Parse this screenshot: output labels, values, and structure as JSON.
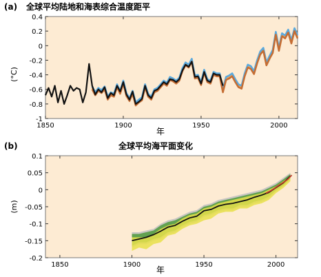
{
  "chart_data": [
    {
      "type": "line",
      "panel": "(a)",
      "title": "全球平均陆地和海表综合温度距平",
      "xlabel": "年",
      "ylabel": "(°C)",
      "xlim": [
        1850,
        2012
      ],
      "ylim": [
        -1,
        0.4
      ],
      "xticks": [
        "1850",
        "1900",
        "1950",
        "2000"
      ],
      "yticks": [
        "0.4",
        "0.2",
        "0",
        "-0.2",
        "-0.4",
        "-0.6",
        "-0.8",
        "-1"
      ],
      "background": "#fdebd3",
      "series": [
        {
          "color": "#f2a65a",
          "x": [
            1880,
            1882,
            1884,
            1886,
            1888,
            1890,
            1892,
            1894,
            1896,
            1898,
            1900,
            1902,
            1904,
            1906,
            1908,
            1910,
            1912,
            1914,
            1916,
            1918,
            1920,
            1922,
            1924,
            1926,
            1928,
            1930,
            1932,
            1934,
            1936,
            1938,
            1940,
            1942,
            1944,
            1946,
            1948,
            1950,
            1952,
            1954,
            1956,
            1958,
            1960,
            1962,
            1964,
            1966,
            1968,
            1970,
            1972,
            1974,
            1976,
            1978,
            1980,
            1982,
            1984,
            1986,
            1988,
            1990,
            1992,
            1994,
            1996,
            1998,
            2000,
            2002,
            2004,
            2006,
            2008,
            2010,
            2012
          ],
          "y": [
            -0.58,
            -0.66,
            -0.6,
            -0.63,
            -0.58,
            -0.72,
            -0.66,
            -0.68,
            -0.55,
            -0.64,
            -0.5,
            -0.67,
            -0.74,
            -0.64,
            -0.8,
            -0.76,
            -0.73,
            -0.55,
            -0.68,
            -0.72,
            -0.62,
            -0.6,
            -0.55,
            -0.5,
            -0.53,
            -0.45,
            -0.47,
            -0.5,
            -0.46,
            -0.33,
            -0.25,
            -0.28,
            -0.2,
            -0.43,
            -0.42,
            -0.52,
            -0.35,
            -0.48,
            -0.5,
            -0.38,
            -0.4,
            -0.4,
            -0.62,
            -0.45,
            -0.43,
            -0.4,
            -0.48,
            -0.55,
            -0.57,
            -0.4,
            -0.28,
            -0.3,
            -0.37,
            -0.22,
            -0.1,
            -0.05,
            -0.25,
            -0.16,
            -0.08,
            0.17,
            -0.05,
            0.15,
            0.12,
            0.2,
            0.05,
            0.22,
            0.12
          ]
        },
        {
          "color": "#5aa9dd",
          "x": [
            1880,
            1882,
            1884,
            1886,
            1888,
            1890,
            1892,
            1894,
            1896,
            1898,
            1900,
            1902,
            1904,
            1906,
            1908,
            1910,
            1912,
            1914,
            1916,
            1918,
            1920,
            1922,
            1924,
            1926,
            1928,
            1930,
            1932,
            1934,
            1936,
            1938,
            1940,
            1942,
            1944,
            1946,
            1948,
            1950,
            1952,
            1954,
            1956,
            1958,
            1960,
            1962,
            1964,
            1966,
            1968,
            1970,
            1972,
            1974,
            1976,
            1978,
            1980,
            1982,
            1984,
            1986,
            1988,
            1990,
            1992,
            1994,
            1996,
            1998,
            2000,
            2002,
            2004,
            2006,
            2008,
            2010,
            2012
          ],
          "y": [
            -0.56,
            -0.64,
            -0.58,
            -0.61,
            -0.56,
            -0.7,
            -0.64,
            -0.66,
            -0.53,
            -0.62,
            -0.48,
            -0.65,
            -0.72,
            -0.62,
            -0.78,
            -0.74,
            -0.71,
            -0.53,
            -0.66,
            -0.7,
            -0.6,
            -0.58,
            -0.53,
            -0.48,
            -0.51,
            -0.43,
            -0.45,
            -0.48,
            -0.44,
            -0.31,
            -0.23,
            -0.26,
            -0.18,
            -0.41,
            -0.4,
            -0.5,
            -0.33,
            -0.46,
            -0.48,
            -0.36,
            -0.38,
            -0.38,
            -0.6,
            -0.43,
            -0.41,
            -0.38,
            -0.46,
            -0.53,
            -0.55,
            -0.38,
            -0.26,
            -0.28,
            -0.35,
            -0.2,
            -0.08,
            -0.03,
            -0.23,
            -0.14,
            -0.06,
            0.19,
            -0.03,
            0.17,
            0.14,
            0.22,
            0.07,
            0.24,
            0.14
          ]
        },
        {
          "color": "#c56d33",
          "x": [
            1880,
            1882,
            1884,
            1886,
            1888,
            1890,
            1892,
            1894,
            1896,
            1898,
            1900,
            1902,
            1904,
            1906,
            1908,
            1910,
            1912,
            1914,
            1916,
            1918,
            1920,
            1922,
            1924,
            1926,
            1928,
            1930,
            1932,
            1934,
            1936,
            1938,
            1940,
            1942,
            1944,
            1946,
            1948,
            1950,
            1952,
            1954,
            1956,
            1958,
            1960,
            1962,
            1964,
            1966,
            1968,
            1970,
            1972,
            1974,
            1976,
            1978,
            1980,
            1982,
            1984,
            1986,
            1988,
            1990,
            1992,
            1994,
            1996,
            1998,
            2000,
            2002,
            2004,
            2006,
            2008,
            2010,
            2012
          ],
          "y": [
            -0.6,
            -0.68,
            -0.62,
            -0.65,
            -0.6,
            -0.74,
            -0.68,
            -0.7,
            -0.57,
            -0.66,
            -0.52,
            -0.69,
            -0.76,
            -0.66,
            -0.82,
            -0.78,
            -0.75,
            -0.57,
            -0.7,
            -0.74,
            -0.64,
            -0.62,
            -0.57,
            -0.52,
            -0.55,
            -0.47,
            -0.49,
            -0.52,
            -0.48,
            -0.35,
            -0.27,
            -0.3,
            -0.22,
            -0.45,
            -0.44,
            -0.54,
            -0.37,
            -0.5,
            -0.52,
            -0.4,
            -0.42,
            -0.42,
            -0.64,
            -0.47,
            -0.45,
            -0.42,
            -0.5,
            -0.57,
            -0.59,
            -0.42,
            -0.3,
            -0.32,
            -0.39,
            -0.24,
            -0.12,
            -0.07,
            -0.27,
            -0.18,
            -0.1,
            0.15,
            -0.07,
            0.13,
            0.1,
            0.18,
            0.03,
            0.2,
            0.1
          ]
        },
        {
          "color": "#111111",
          "x": [
            1850,
            1852,
            1854,
            1856,
            1858,
            1860,
            1862,
            1864,
            1866,
            1868,
            1870,
            1872,
            1874,
            1876,
            1878,
            1880,
            1882,
            1884,
            1886,
            1888,
            1890,
            1892,
            1894,
            1896,
            1898,
            1900,
            1902,
            1904,
            1906,
            1908,
            1910,
            1912,
            1914,
            1916,
            1918,
            1920,
            1922,
            1924,
            1926,
            1928,
            1930,
            1932,
            1934,
            1936,
            1938,
            1940,
            1942,
            1944,
            1946,
            1948,
            1950,
            1952,
            1954,
            1956,
            1958,
            1960,
            1962,
            1964
          ],
          "y": [
            -0.68,
            -0.58,
            -0.7,
            -0.55,
            -0.78,
            -0.62,
            -0.8,
            -0.68,
            -0.55,
            -0.62,
            -0.58,
            -0.6,
            -0.78,
            -0.64,
            -0.25,
            -0.55,
            -0.67,
            -0.6,
            -0.64,
            -0.57,
            -0.72,
            -0.65,
            -0.68,
            -0.55,
            -0.63,
            -0.5,
            -0.67,
            -0.74,
            -0.63,
            -0.8,
            -0.77,
            -0.73,
            -0.55,
            -0.68,
            -0.72,
            -0.62,
            -0.6,
            -0.55,
            -0.5,
            -0.53,
            -0.46,
            -0.47,
            -0.5,
            -0.46,
            -0.34,
            -0.26,
            -0.29,
            -0.22,
            -0.43,
            -0.42,
            -0.52,
            -0.36,
            -0.48,
            -0.5,
            -0.38,
            -0.4,
            -0.4,
            -0.55
          ]
        }
      ]
    },
    {
      "type": "area",
      "panel": "(b)",
      "title": "全球平均海平面变化",
      "xlabel": "年",
      "ylabel": "(m)",
      "xlim": [
        1840,
        2015
      ],
      "ylim": [
        -0.2,
        0.1
      ],
      "xticks": [
        "1850",
        "1900",
        "1950",
        "2000"
      ],
      "yticks": [
        "0.1",
        "0.05",
        "0",
        "-0.05",
        "-0.1",
        "-0.15",
        "-0.2"
      ],
      "background": "#fdebd3",
      "series": [
        {
          "color": "#bfbfbf",
          "band": "gray",
          "x": [
            1900,
            1905,
            1910,
            1915,
            1920,
            1925,
            1930,
            1935,
            1940,
            1945,
            1950,
            1955,
            1960,
            1965,
            1970,
            1975,
            1980,
            1985,
            1990,
            1995,
            2000,
            2005,
            2010
          ],
          "y_low": [
            -0.17,
            -0.16,
            -0.16,
            -0.15,
            -0.145,
            -0.13,
            -0.125,
            -0.11,
            -0.1,
            -0.095,
            -0.08,
            -0.075,
            -0.065,
            -0.06,
            -0.06,
            -0.05,
            -0.05,
            -0.04,
            -0.035,
            -0.025,
            -0.005,
            0.01,
            0.03
          ],
          "y_high": [
            -0.125,
            -0.125,
            -0.12,
            -0.115,
            -0.1,
            -0.09,
            -0.085,
            -0.075,
            -0.065,
            -0.06,
            -0.045,
            -0.04,
            -0.03,
            -0.025,
            -0.02,
            -0.015,
            -0.01,
            -0.005,
            0,
            0.01,
            0.02,
            0.035,
            0.05
          ]
        },
        {
          "color": "#4f9a3c",
          "band": "green",
          "x": [
            1900,
            1905,
            1910,
            1915,
            1920,
            1925,
            1930,
            1935,
            1940,
            1945,
            1950,
            1955,
            1960,
            1965,
            1970,
            1975,
            1980,
            1985,
            1990,
            1995,
            2000,
            2005,
            2010
          ],
          "y_low": [
            -0.165,
            -0.155,
            -0.155,
            -0.145,
            -0.14,
            -0.125,
            -0.12,
            -0.105,
            -0.095,
            -0.09,
            -0.075,
            -0.07,
            -0.06,
            -0.055,
            -0.055,
            -0.045,
            -0.045,
            -0.035,
            -0.03,
            -0.02,
            -0.002,
            0.012,
            0.032
          ],
          "y_high": [
            -0.13,
            -0.13,
            -0.125,
            -0.12,
            -0.105,
            -0.095,
            -0.09,
            -0.08,
            -0.07,
            -0.065,
            -0.05,
            -0.045,
            -0.035,
            -0.03,
            -0.025,
            -0.02,
            -0.015,
            -0.01,
            -0.005,
            0.005,
            0.015,
            0.03,
            0.046
          ]
        },
        {
          "color": "#e8e14a",
          "band": "yellow",
          "x": [
            1900,
            1905,
            1910,
            1915,
            1920,
            1925,
            1930,
            1935,
            1940,
            1945,
            1950,
            1955,
            1960,
            1965,
            1970,
            1975,
            1980,
            1985,
            1990,
            1995,
            2000,
            2005,
            2010
          ],
          "y_low": [
            -0.18,
            -0.17,
            -0.175,
            -0.16,
            -0.155,
            -0.135,
            -0.13,
            -0.115,
            -0.105,
            -0.1,
            -0.09,
            -0.085,
            -0.07,
            -0.065,
            -0.065,
            -0.055,
            -0.055,
            -0.045,
            -0.04,
            -0.03,
            -0.01,
            0.005,
            0.025
          ],
          "y_high": [
            -0.14,
            -0.14,
            -0.14,
            -0.13,
            -0.115,
            -0.105,
            -0.1,
            -0.085,
            -0.075,
            -0.07,
            -0.055,
            -0.05,
            -0.04,
            -0.035,
            -0.03,
            -0.025,
            -0.02,
            -0.015,
            -0.01,
            0,
            0.01,
            0.025,
            0.04
          ]
        },
        {
          "color": "#111111",
          "x": [
            1900,
            1905,
            1910,
            1915,
            1920,
            1925,
            1930,
            1935,
            1940,
            1945,
            1950,
            1955,
            1960,
            1965,
            1970,
            1975,
            1980,
            1985,
            1990,
            1995,
            2000,
            2005,
            2010
          ],
          "y": [
            -0.15,
            -0.145,
            -0.14,
            -0.132,
            -0.122,
            -0.11,
            -0.105,
            -0.093,
            -0.083,
            -0.078,
            -0.062,
            -0.058,
            -0.048,
            -0.043,
            -0.04,
            -0.035,
            -0.03,
            -0.022,
            -0.016,
            -0.008,
            0.006,
            0.02,
            0.04
          ]
        },
        {
          "color": "#c0392b",
          "x": [
            1993,
            1996,
            1999,
            2002,
            2005,
            2008,
            2011
          ],
          "y": [
            -0.01,
            -0.004,
            0.004,
            0.013,
            0.021,
            0.03,
            0.043
          ]
        }
      ]
    }
  ]
}
